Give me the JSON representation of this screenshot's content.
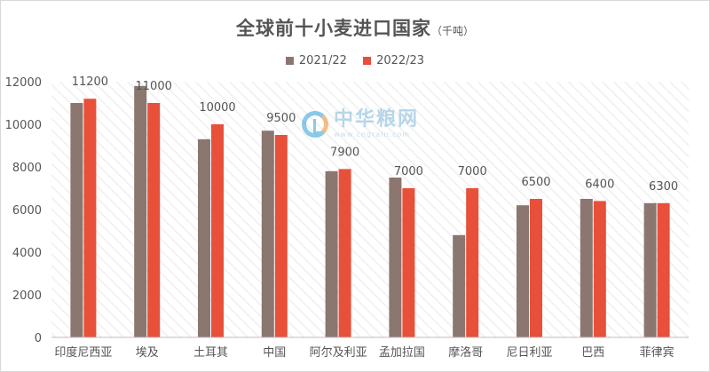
{
  "chart_data": {
    "type": "bar",
    "title": "全球前十小麦进口国家",
    "title_unit": "（千吨）",
    "categories": [
      "印度尼西亚",
      "埃及",
      "土耳其",
      "中国",
      "阿尔及利亚",
      "孟加拉国",
      "摩洛哥",
      "尼日利亚",
      "巴西",
      "菲律宾"
    ],
    "series": [
      {
        "name": "2021/22",
        "color": "#8c7670",
        "values": [
          11000,
          11800,
          9300,
          9700,
          7800,
          7500,
          4800,
          6200,
          6500,
          6300
        ]
      },
      {
        "name": "2022/23",
        "color": "#e8503a",
        "values": [
          11200,
          11000,
          10000,
          9500,
          7900,
          7000,
          7000,
          6500,
          6400,
          6300
        ]
      }
    ],
    "data_labels_series": "2022/23",
    "yticks": [
      0,
      2000,
      4000,
      6000,
      8000,
      10000,
      12000
    ],
    "ylim": [
      0,
      12000
    ],
    "grid": false,
    "legend_position": "top-center"
  },
  "watermark": {
    "text": "中华粮网",
    "url": "www.cngrain.com"
  }
}
